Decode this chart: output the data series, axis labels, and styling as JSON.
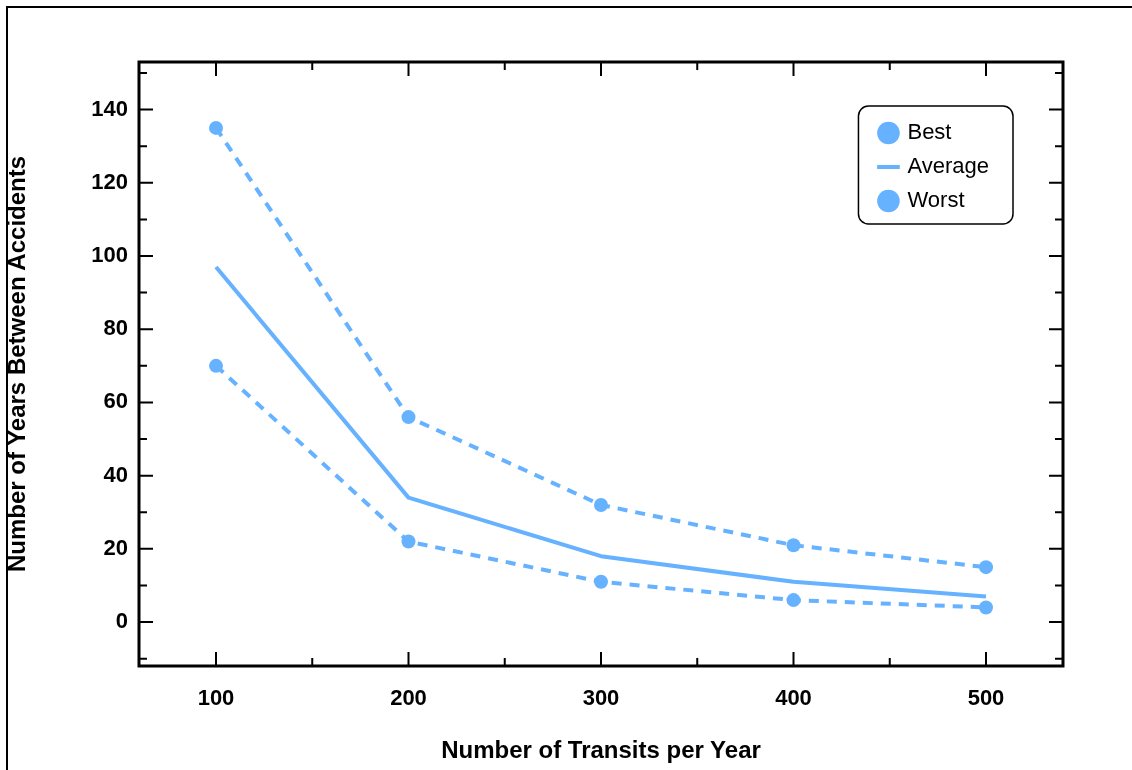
{
  "chart_data": {
    "type": "line",
    "xlabel": "Number of Transits per Year",
    "ylabel": "Number of Years Between Accidents",
    "x": [
      100,
      200,
      300,
      400,
      500
    ],
    "series": [
      {
        "name": "Best",
        "color": "#66b2ff",
        "values": [
          135,
          56,
          32,
          21,
          15
        ],
        "marker": "circle",
        "line_style": "dashed"
      },
      {
        "name": "Average",
        "color": "#66b2ff",
        "values": [
          97,
          34,
          18,
          11,
          7
        ],
        "marker": "none",
        "line_style": "solid"
      },
      {
        "name": "Worst",
        "color": "#66b2ff",
        "values": [
          70,
          22,
          11,
          6,
          4
        ],
        "marker": "circle",
        "line_style": "dashed"
      }
    ],
    "xlim": [
      60,
      540
    ],
    "xticks": [
      100,
      {
        "value": 150,
        "label": null
      },
      200,
      {
        "value": 250,
        "label": null
      },
      300,
      {
        "value": 350,
        "label": null
      },
      400,
      {
        "value": 450,
        "label": null
      },
      500
    ],
    "ylim": [
      -12,
      153
    ],
    "yticks": [
      {
        "value": -10,
        "label": null
      },
      0,
      {
        "value": 10,
        "label": null
      },
      20,
      {
        "value": 30,
        "label": null
      },
      40,
      {
        "value": 50,
        "label": null
      },
      60,
      {
        "value": 70,
        "label": null
      },
      80,
      {
        "value": 90,
        "label": null
      },
      100,
      {
        "value": 110,
        "label": null
      },
      120,
      {
        "value": 130,
        "label": null
      },
      140,
      {
        "value": 150,
        "label": null
      }
    ],
    "grid": false,
    "legend": "top right"
  }
}
